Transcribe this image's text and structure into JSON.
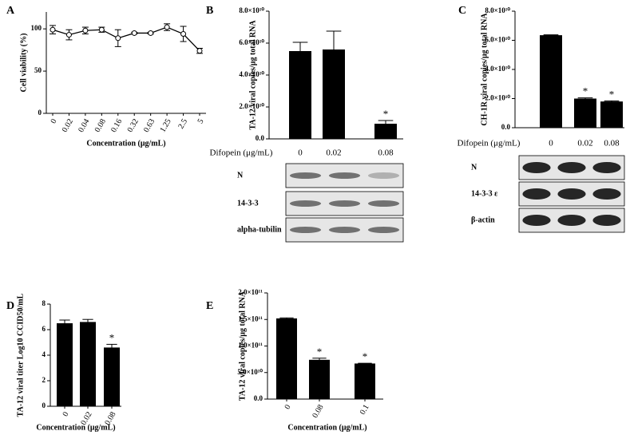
{
  "chart_data": [
    {
      "type": "line",
      "label": "A",
      "ylabel": "Cell viability (%)",
      "xlabel": "Concentration (μg/mL)",
      "categories": [
        "0",
        "0.02",
        "0.04",
        "0.08",
        "0.16",
        "0.32",
        "0.63",
        "1.25",
        "2.5",
        "5"
      ],
      "values": [
        99,
        93,
        98,
        99,
        89,
        95,
        95,
        102,
        94,
        74
      ],
      "errors": [
        5,
        6,
        4,
        3,
        10,
        1,
        1,
        4,
        9,
        3
      ],
      "ylim": [
        0,
        120
      ],
      "yticks": [
        0,
        50,
        100
      ],
      "color": "#000000"
    },
    {
      "type": "bar",
      "label": "B",
      "ylabel": "TA-12 viral copies/μg total RNA",
      "xlabel": "Difopein (μg/mL)",
      "categories": [
        "0",
        "0.02",
        "0.08"
      ],
      "values": [
        55000000000,
        56000000000,
        9500000000
      ],
      "errors": [
        5500000000,
        11500000000,
        2000000000
      ],
      "significance": [
        null,
        null,
        "*"
      ],
      "ylim": [
        0,
        80000000000
      ],
      "yticks": [
        {
          "value": 0,
          "label": "0.0"
        },
        {
          "value": 20000000000,
          "label": "2.0×10¹⁰"
        },
        {
          "value": 40000000000,
          "label": "4.0×10¹⁰"
        },
        {
          "value": 60000000000,
          "label": "6.0×10¹⁰"
        },
        {
          "value": 80000000000,
          "label": "8.0×10¹⁰"
        }
      ],
      "blots": [
        "N",
        "14-3-3",
        "alpha-tubilin"
      ],
      "color": "#000000"
    },
    {
      "type": "bar",
      "label": "C",
      "ylabel": "CH-1R viral copies/μg total RNA",
      "xlabel": "Difopein (μg/mL)",
      "categories": [
        "0",
        "0.02",
        "0.08"
      ],
      "values": [
        63500000000,
        20000000000,
        18000000000
      ],
      "errors": [
        300000000,
        500000000,
        400000000
      ],
      "significance": [
        null,
        "*",
        "*"
      ],
      "ylim": [
        0,
        80000000000
      ],
      "yticks": [
        {
          "value": 0,
          "label": "0.0"
        },
        {
          "value": 20000000000,
          "label": "2.0×10¹⁰"
        },
        {
          "value": 40000000000,
          "label": "4.0×10¹⁰"
        },
        {
          "value": 60000000000,
          "label": "6.0×10¹⁰"
        },
        {
          "value": 80000000000,
          "label": "8.0×10¹⁰"
        }
      ],
      "blots": [
        "N",
        "14-3-3 ε",
        "β-actin"
      ],
      "color": "#000000"
    },
    {
      "type": "bar",
      "label": "D",
      "ylabel": "TA-12 viral titer Log10 CCID50/mL",
      "xlabel": "Concentration (μg/mL)",
      "categories": [
        "0",
        "0.02",
        "0.08"
      ],
      "values": [
        6.5,
        6.6,
        4.6
      ],
      "errors": [
        0.25,
        0.2,
        0.25
      ],
      "significance": [
        null,
        null,
        "*"
      ],
      "ylim": [
        0,
        8
      ],
      "yticks": [
        0,
        2,
        4,
        6,
        8
      ],
      "color": "#000000"
    },
    {
      "type": "bar",
      "label": "E",
      "ylabel": "TA-12 viral copies/μg total RNA",
      "xlabel": "Concentration (μg/mL)",
      "categories": [
        "0",
        "0.08",
        "0.1"
      ],
      "values": [
        152000000000,
        74000000000,
        67000000000
      ],
      "errors": [
        1000000000,
        3000000000,
        500000000
      ],
      "significance": [
        null,
        "*",
        "*"
      ],
      "ylim": [
        0,
        200000000000
      ],
      "yticks": [
        {
          "value": 0,
          "label": "0.0"
        },
        {
          "value": 50000000000,
          "label": "5.0×10¹⁰"
        },
        {
          "value": 100000000000,
          "label": "1.0×10¹¹"
        },
        {
          "value": 150000000000,
          "label": "1.5×10¹¹"
        },
        {
          "value": 200000000000,
          "label": "2.0×10¹¹"
        }
      ],
      "color": "#000000"
    }
  ]
}
